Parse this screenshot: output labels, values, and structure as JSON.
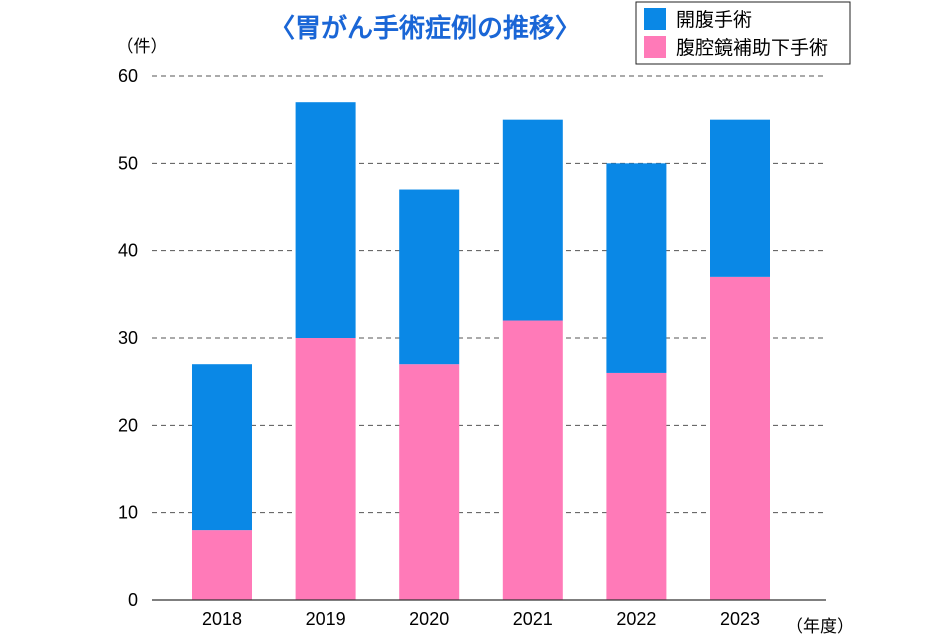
{
  "chart_data": {
    "type": "bar",
    "stacked": true,
    "title": "〈胃がん手術症例の推移〉",
    "ylabel": "（件）",
    "xlabel": "（年度）",
    "categories": [
      "2018",
      "2019",
      "2020",
      "2021",
      "2022",
      "2023"
    ],
    "series": [
      {
        "name": "腹腔鏡補助下手術",
        "color": "#ff7ab8",
        "values": [
          8,
          30,
          27,
          32,
          26,
          37
        ]
      },
      {
        "name": "開腹手術",
        "color": "#0a88e6",
        "values": [
          19,
          27,
          20,
          23,
          24,
          18
        ]
      }
    ],
    "ylim": [
      0,
      60
    ],
    "yticks": [
      0,
      10,
      20,
      30,
      40,
      50,
      60
    ],
    "grid": true,
    "legend_position": "top-right",
    "legend_order": [
      "開腹手術",
      "腹腔鏡補助下手術"
    ]
  }
}
